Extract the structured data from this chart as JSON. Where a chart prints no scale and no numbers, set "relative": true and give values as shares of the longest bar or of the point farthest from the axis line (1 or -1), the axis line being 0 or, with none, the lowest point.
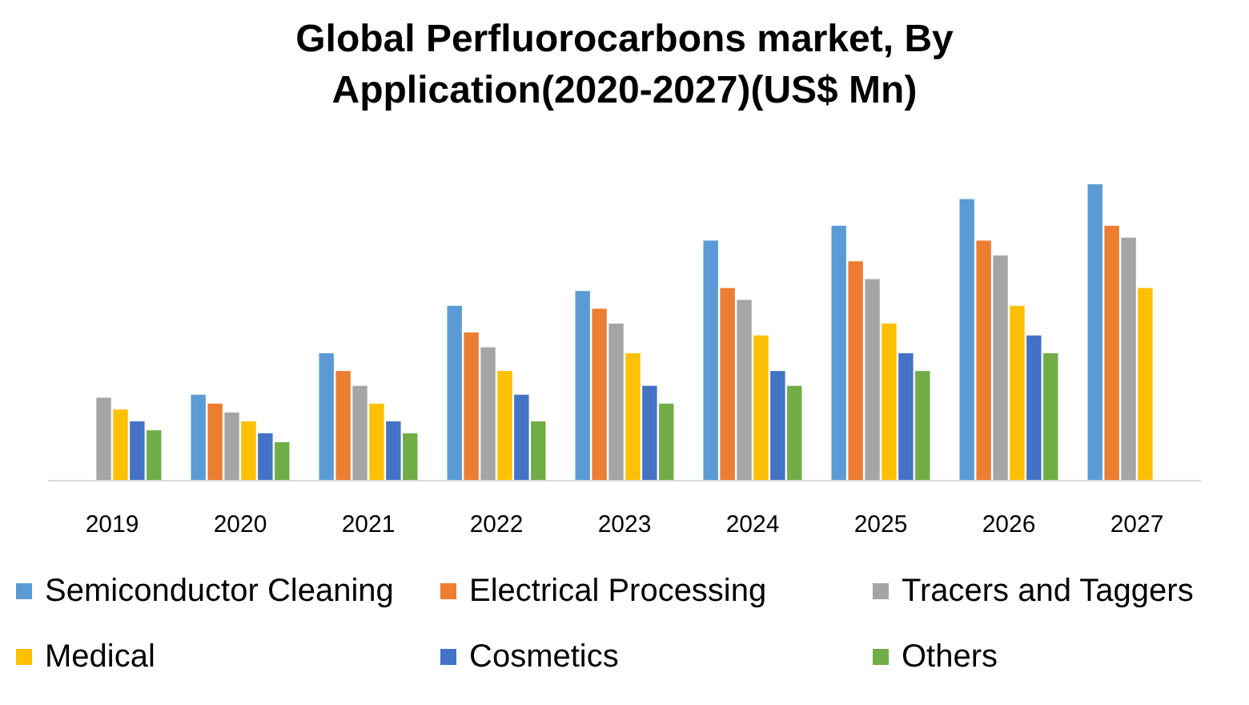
{
  "chart_data": {
    "type": "bar",
    "title": "Global Perfluorocarbons market, By Application(2020-2027)(US$ Mn)",
    "relative": true,
    "legend": "bottom",
    "categories": [
      "2019",
      "2020",
      "2021",
      "2022",
      "2023",
      "2024",
      "2025",
      "2026",
      "2027"
    ],
    "series": [
      {
        "name": "Semiconductor Cleaning",
        "color": "#5b9bd5",
        "values": [
          null,
          0.29,
          0.43,
          0.59,
          0.64,
          0.81,
          0.86,
          0.95,
          1
        ]
      },
      {
        "name": "Electrical Processing",
        "color": "#ed7d31",
        "values": [
          null,
          0.26,
          0.37,
          0.5,
          0.58,
          0.65,
          0.74,
          0.81,
          0.86
        ]
      },
      {
        "name": "Tracers and Taggers",
        "color": "#a5a5a5",
        "values": [
          0.28,
          0.23,
          0.32,
          0.45,
          0.53,
          0.61,
          0.68,
          0.76,
          0.82
        ]
      },
      {
        "name": "Medical",
        "color": "#ffc000",
        "values": [
          0.24,
          0.2,
          0.26,
          0.37,
          0.43,
          0.49,
          0.53,
          0.59,
          0.65
        ]
      },
      {
        "name": "Cosmetics",
        "color": "#4472c4",
        "values": [
          0.2,
          0.16,
          0.2,
          0.29,
          0.32,
          0.37,
          0.43,
          0.49,
          null
        ]
      },
      {
        "name": "Others",
        "color": "#70ad47",
        "values": [
          0.17,
          0.13,
          0.16,
          0.2,
          0.26,
          0.32,
          0.37,
          0.43,
          null
        ]
      }
    ]
  }
}
